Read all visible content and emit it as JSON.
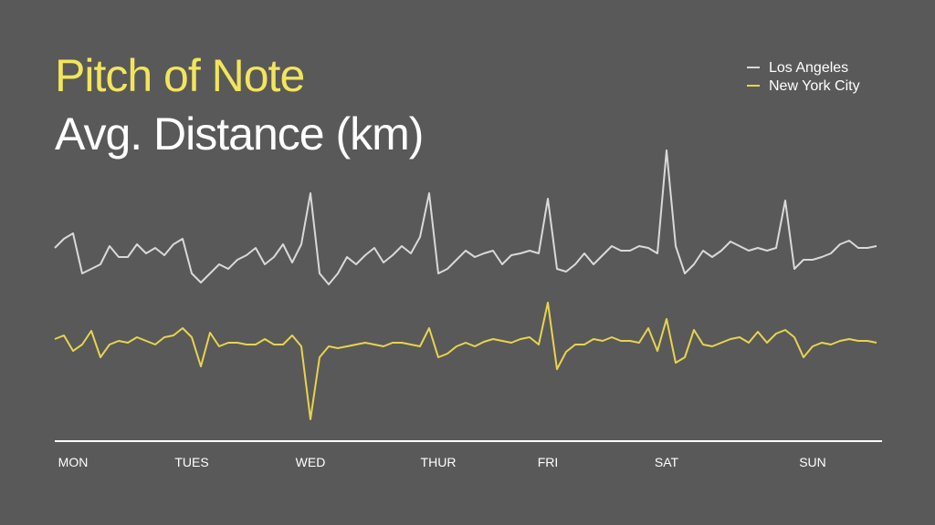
{
  "chart_data": {
    "type": "line",
    "title": "Pitch of Note",
    "subtitle": "Avg. Distance (km)",
    "x": [
      0,
      1,
      2,
      3,
      4,
      5,
      6,
      7,
      8,
      9,
      10,
      11,
      12,
      13,
      14,
      15,
      16,
      17,
      18,
      19,
      20,
      21,
      22,
      23,
      24,
      25,
      26,
      27,
      28,
      29,
      30,
      31,
      32,
      33,
      34,
      35,
      36,
      37,
      38,
      39,
      40,
      41,
      42,
      43,
      44,
      45,
      46,
      47,
      48,
      49,
      50,
      51,
      52,
      53,
      54,
      55,
      56,
      57,
      58,
      59,
      60,
      61,
      62,
      63,
      64,
      65,
      66,
      67,
      68,
      69,
      70,
      71,
      72,
      73,
      74,
      75,
      76,
      77,
      78,
      79,
      80,
      81,
      82,
      83,
      84,
      85,
      86,
      87,
      88,
      89,
      90
    ],
    "xlim": [
      0,
      90
    ],
    "xticks": [
      {
        "value": 2,
        "label": "MON"
      },
      {
        "value": 15,
        "label": "TUES"
      },
      {
        "value": 28,
        "label": "WED"
      },
      {
        "value": 42,
        "label": "THUR"
      },
      {
        "value": 54,
        "label": "FRI"
      },
      {
        "value": 67,
        "label": "SAT"
      },
      {
        "value": 83,
        "label": "SUN"
      }
    ],
    "ylim": [
      0,
      320
    ],
    "legend": "top-right",
    "series": [
      {
        "name": "Los Angeles",
        "color": "#d9d9d9",
        "values": [
          208,
          218,
          224,
          180,
          185,
          190,
          210,
          198,
          198,
          212,
          202,
          208,
          200,
          212,
          218,
          180,
          170,
          180,
          190,
          185,
          195,
          200,
          208,
          190,
          198,
          212,
          192,
          212,
          268,
          180,
          168,
          180,
          198,
          190,
          200,
          208,
          192,
          200,
          210,
          202,
          220,
          268,
          180,
          185,
          195,
          205,
          198,
          202,
          205,
          190,
          200,
          202,
          205,
          202,
          262,
          185,
          182,
          190,
          202,
          190,
          200,
          210,
          205,
          205,
          210,
          208,
          202,
          315,
          210,
          180,
          190,
          205,
          198,
          205,
          215,
          210,
          205,
          208,
          205,
          208,
          260,
          185,
          195,
          195,
          198,
          202,
          212,
          216,
          208,
          208,
          210
        ]
      },
      {
        "name": "New York City",
        "color": "#e8d44d",
        "values": [
          108,
          112,
          95,
          102,
          117,
          88,
          102,
          106,
          104,
          110,
          106,
          102,
          110,
          112,
          120,
          110,
          78,
          115,
          100,
          104,
          104,
          102,
          102,
          108,
          102,
          102,
          112,
          100,
          20,
          88,
          100,
          98,
          100,
          102,
          104,
          102,
          100,
          104,
          104,
          102,
          100,
          120,
          88,
          92,
          100,
          104,
          100,
          105,
          108,
          106,
          104,
          108,
          110,
          102,
          148,
          75,
          94,
          102,
          102,
          108,
          106,
          110,
          106,
          106,
          104,
          120,
          95,
          130,
          82,
          88,
          118,
          102,
          100,
          104,
          108,
          110,
          104,
          116,
          104,
          114,
          118,
          110,
          88,
          100,
          104,
          102,
          106,
          108,
          106,
          106,
          104
        ]
      }
    ]
  }
}
